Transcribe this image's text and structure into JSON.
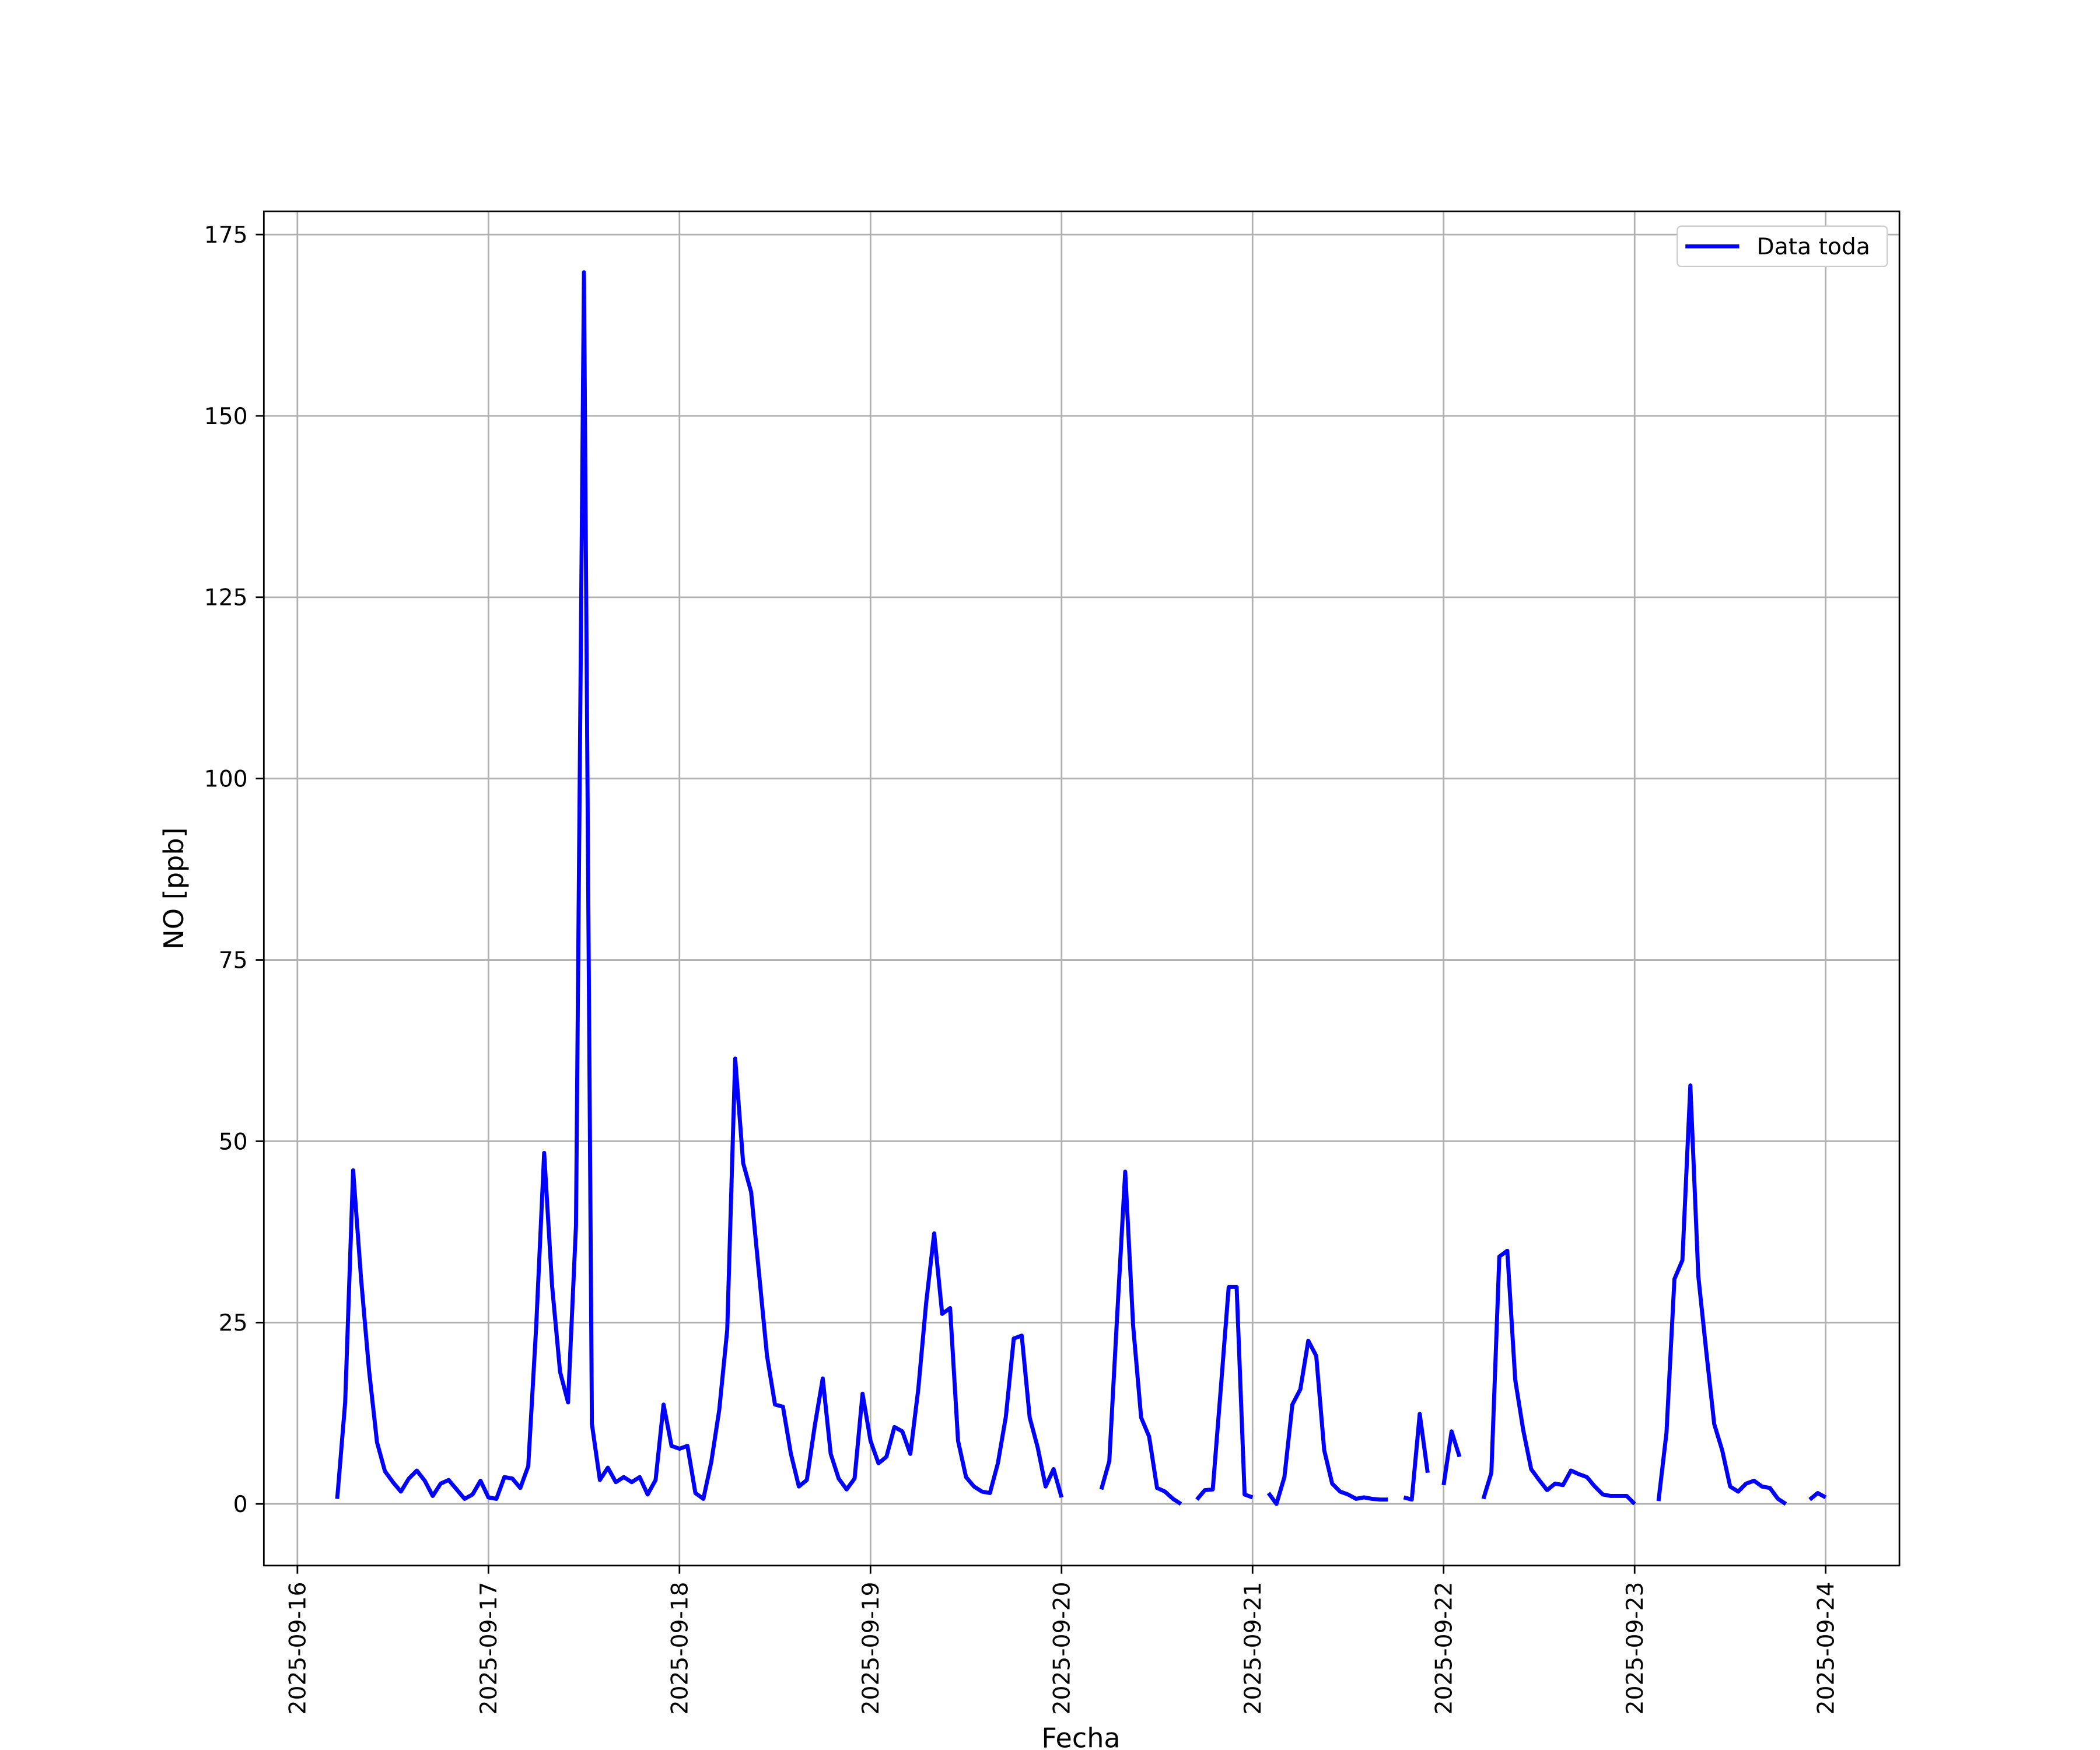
{
  "chart_data": {
    "type": "line",
    "xlabel": "Fecha",
    "ylabel": "NO [ppb]",
    "x": [
      "2025-09-16 05:00",
      "2025-09-16 06:00",
      "2025-09-16 07:00",
      "2025-09-16 08:00",
      "2025-09-16 09:00",
      "2025-09-16 10:00",
      "2025-09-16 11:00",
      "2025-09-16 12:00",
      "2025-09-16 13:00",
      "2025-09-16 14:00",
      "2025-09-16 15:00",
      "2025-09-16 16:00",
      "2025-09-16 17:00",
      "2025-09-16 18:00",
      "2025-09-16 19:00",
      "2025-09-16 20:00",
      "2025-09-16 21:00",
      "2025-09-16 22:00",
      "2025-09-16 23:00",
      "2025-09-17 00:00",
      "2025-09-17 01:00",
      "2025-09-17 02:00",
      "2025-09-17 03:00",
      "2025-09-17 04:00",
      "2025-09-17 05:00",
      "2025-09-17 06:00",
      "2025-09-17 07:00",
      "2025-09-17 08:00",
      "2025-09-17 09:00",
      "2025-09-17 10:00",
      "2025-09-17 11:00",
      "2025-09-17 12:00",
      "2025-09-17 13:00",
      "2025-09-17 14:00",
      "2025-09-17 15:00",
      "2025-09-17 16:00",
      "2025-09-17 17:00",
      "2025-09-17 18:00",
      "2025-09-17 19:00",
      "2025-09-17 20:00",
      "2025-09-17 21:00",
      "2025-09-17 22:00",
      "2025-09-17 23:00",
      "2025-09-18 00:00",
      "2025-09-18 01:00",
      "2025-09-18 02:00",
      "2025-09-18 03:00",
      "2025-09-18 04:00",
      "2025-09-18 05:00",
      "2025-09-18 06:00",
      "2025-09-18 07:00",
      "2025-09-18 08:00",
      "2025-09-18 09:00",
      "2025-09-18 10:00",
      "2025-09-18 11:00",
      "2025-09-18 12:00",
      "2025-09-18 13:00",
      "2025-09-18 14:00",
      "2025-09-18 15:00",
      "2025-09-18 16:00",
      "2025-09-18 17:00",
      "2025-09-18 18:00",
      "2025-09-18 19:00",
      "2025-09-18 20:00",
      "2025-09-18 21:00",
      "2025-09-18 22:00",
      "2025-09-18 23:00",
      "2025-09-19 00:00",
      "2025-09-19 01:00",
      "2025-09-19 02:00",
      "2025-09-19 03:00",
      "2025-09-19 04:00",
      "2025-09-19 05:00",
      "2025-09-19 06:00",
      "2025-09-19 07:00",
      "2025-09-19 08:00",
      "2025-09-19 09:00",
      "2025-09-19 10:00",
      "2025-09-19 11:00",
      "2025-09-19 12:00",
      "2025-09-19 13:00",
      "2025-09-19 14:00",
      "2025-09-19 15:00",
      "2025-09-19 16:00",
      "2025-09-19 17:00",
      "2025-09-19 18:00",
      "2025-09-19 19:00",
      "2025-09-19 20:00",
      "2025-09-19 21:00",
      "2025-09-19 22:00",
      "2025-09-19 23:00",
      "2025-09-20 00:00",
      "2025-09-20 01:00",
      "2025-09-20 05:00",
      "2025-09-20 06:00",
      "2025-09-20 07:00",
      "2025-09-20 08:00",
      "2025-09-20 09:00",
      "2025-09-20 10:00",
      "2025-09-20 11:00",
      "2025-09-20 12:00",
      "2025-09-20 13:00",
      "2025-09-20 14:00",
      "2025-09-20 15:00",
      "2025-09-20 16:00",
      "2025-09-20 17:00",
      "2025-09-20 18:00",
      "2025-09-20 19:00",
      "2025-09-20 20:00",
      "2025-09-20 21:00",
      "2025-09-20 22:00",
      "2025-09-20 23:00",
      "2025-09-21 00:00",
      "2025-09-21 01:00",
      "2025-09-21 02:00",
      "2025-09-21 03:00",
      "2025-09-21 04:00",
      "2025-09-21 05:00",
      "2025-09-21 06:00",
      "2025-09-21 07:00",
      "2025-09-21 08:00",
      "2025-09-21 09:00",
      "2025-09-21 10:00",
      "2025-09-21 11:00",
      "2025-09-21 12:00",
      "2025-09-21 13:00",
      "2025-09-21 14:00",
      "2025-09-21 15:00",
      "2025-09-21 16:00",
      "2025-09-21 17:00",
      "2025-09-21 18:00",
      "2025-09-21 19:00",
      "2025-09-21 20:00",
      "2025-09-21 21:00",
      "2025-09-21 22:00",
      "2025-09-21 23:00",
      "2025-09-22 00:00",
      "2025-09-22 01:00",
      "2025-09-22 02:00",
      "2025-09-22 03:00",
      "2025-09-22 05:00",
      "2025-09-22 06:00",
      "2025-09-22 07:00",
      "2025-09-22 08:00",
      "2025-09-22 09:00",
      "2025-09-22 10:00",
      "2025-09-22 11:00",
      "2025-09-22 12:00",
      "2025-09-22 13:00",
      "2025-09-22 14:00",
      "2025-09-22 15:00",
      "2025-09-22 16:00",
      "2025-09-22 17:00",
      "2025-09-22 18:00",
      "2025-09-22 19:00",
      "2025-09-22 20:00",
      "2025-09-22 21:00",
      "2025-09-22 22:00",
      "2025-09-22 23:00",
      "2025-09-23 00:00",
      "2025-09-23 01:00",
      "2025-09-23 03:00",
      "2025-09-23 04:00",
      "2025-09-23 05:00",
      "2025-09-23 06:00",
      "2025-09-23 07:00",
      "2025-09-23 08:00",
      "2025-09-23 09:00",
      "2025-09-23 10:00",
      "2025-09-23 11:00",
      "2025-09-23 12:00",
      "2025-09-23 13:00",
      "2025-09-23 14:00",
      "2025-09-23 15:00",
      "2025-09-23 16:00",
      "2025-09-23 17:00",
      "2025-09-23 18:00",
      "2025-09-23 19:00",
      "2025-09-23 20:00",
      "2025-09-23 22:00",
      "2025-09-23 23:00",
      "2025-09-24 00:00"
    ],
    "series": [
      {
        "name": "Data toda",
        "color": "#0000ff",
        "values": [
          0.7,
          14,
          46,
          31,
          18.4,
          8.5,
          4.5,
          3,
          1.7,
          3.5,
          4.6,
          3.2,
          1.1,
          2.8,
          3.3,
          2,
          0.7,
          1.3,
          3.2,
          0.9,
          0.7,
          3.7,
          3.5,
          2.2,
          5.2,
          24.5,
          48.4,
          30,
          18.2,
          14,
          38.4,
          169.8,
          11,
          3.3,
          5,
          3,
          3.7,
          3,
          3.7,
          1.3,
          3.3,
          13.7,
          8,
          7.6,
          8,
          1.5,
          0.7,
          5.8,
          13,
          24,
          61.4,
          47,
          43,
          31.7,
          20.4,
          13.7,
          13.4,
          6.9,
          2.4,
          3.3,
          10.8,
          17.3,
          6.9,
          3.5,
          2,
          3.5,
          15.2,
          8.7,
          5.6,
          6.5,
          10.6,
          10,
          6.9,
          15.8,
          27.8,
          37.3,
          26.2,
          27,
          8.7,
          3.7,
          2.4,
          1.7,
          1.5,
          5.6,
          12,
          22.8,
          23.2,
          11.9,
          7.8,
          2.4,
          4.8,
          0.9,
          null,
          2,
          5.9,
          26.2,
          45.8,
          24.5,
          11.9,
          9.3,
          2.2,
          1.7,
          0.7,
          0,
          null,
          0.6,
          1.9,
          2,
          15.8,
          29.9,
          29.9,
          1.3,
          0.9,
          null,
          1.5,
          0,
          3.7,
          13.7,
          15.8,
          22.5,
          20.4,
          7.4,
          2.8,
          1.7,
          1.3,
          0.7,
          0.9,
          0.7,
          0.6,
          0.6,
          null,
          0.9,
          0.6,
          12.4,
          4.3,
          null,
          2.6,
          10,
          6.5,
          null,
          0.7,
          4.3,
          34.1,
          34.9,
          17.1,
          10.2,
          4.8,
          3.3,
          1.9,
          2.8,
          2.6,
          4.6,
          4.1,
          3.7,
          2.4,
          1.3,
          1.1,
          1.1,
          1.1,
          0,
          null,
          0.4,
          9.8,
          31,
          33.6,
          57.7,
          31.4,
          21,
          11,
          7.4,
          2.4,
          1.7,
          2.8,
          3.2,
          2.4,
          2.2,
          0.7,
          0,
          null,
          0.6,
          1.5,
          0.9
        ]
      }
    ],
    "xlim": [
      "2025-09-15 19:47",
      "2025-09-24 09:16"
    ],
    "xticks": [
      "2025-09-16",
      "2025-09-17",
      "2025-09-18",
      "2025-09-19",
      "2025-09-20",
      "2025-09-21",
      "2025-09-22",
      "2025-09-23",
      "2025-09-24"
    ],
    "ylim": [
      -8.5,
      178.2
    ],
    "yticks": [
      0,
      25,
      50,
      75,
      100,
      125,
      150,
      175
    ],
    "grid": true,
    "legend": "upper right"
  }
}
